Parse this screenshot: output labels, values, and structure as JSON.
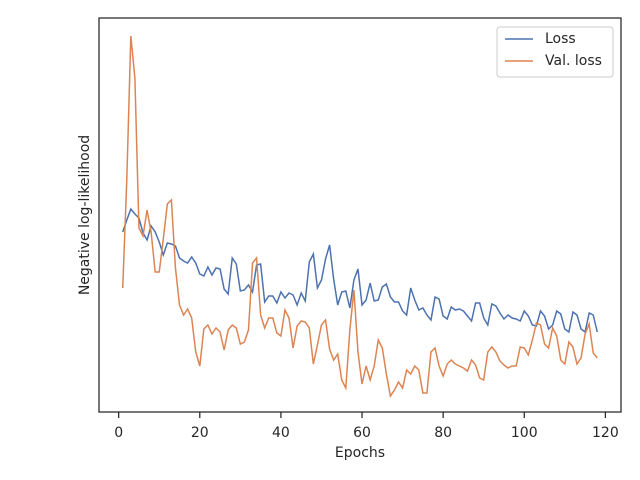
{
  "chart_data": {
    "type": "line",
    "xlabel": "Epochs",
    "ylabel": "Negative log-likelihood",
    "x": [
      1,
      2,
      3,
      4,
      5,
      6,
      7,
      8,
      9,
      10,
      11,
      12,
      13,
      14,
      15,
      16,
      17,
      18,
      19,
      20,
      21,
      22,
      23,
      24,
      25,
      26,
      27,
      28,
      29,
      30,
      31,
      32,
      33,
      34,
      35,
      36,
      37,
      38,
      39,
      40,
      41,
      42,
      43,
      44,
      45,
      46,
      47,
      48,
      49,
      50,
      51,
      52,
      53,
      54,
      55,
      56,
      57,
      58,
      59,
      60,
      61,
      62,
      63,
      64,
      65,
      66,
      67,
      68,
      69,
      70,
      71,
      72,
      73,
      74,
      75,
      76,
      77,
      78,
      79,
      80,
      81,
      82,
      83,
      84,
      85,
      86,
      87,
      88,
      89,
      90,
      91,
      92,
      93,
      94,
      95,
      96,
      97,
      98,
      99,
      100,
      101,
      102,
      103,
      104,
      105,
      106,
      107,
      108,
      109,
      110,
      111,
      112,
      113,
      114,
      115,
      116,
      117,
      118
    ],
    "series": [
      {
        "name": "Loss",
        "color": "#4c72b0",
        "values": [
          180,
          192,
          203,
          198,
          194,
          179,
          172,
          186,
          180,
          170,
          157,
          169,
          168,
          166,
          154,
          151,
          149,
          155,
          149,
          138,
          136,
          145,
          137,
          144,
          143,
          123,
          118,
          154,
          148,
          121,
          122,
          127,
          120,
          147,
          148,
          110,
          116,
          116,
          109,
          120,
          114,
          119,
          117,
          107,
          119,
          111,
          150,
          158,
          124,
          132,
          153,
          167,
          133,
          107,
          120,
          121,
          104,
          132,
          143,
          107,
          112,
          129,
          111,
          112,
          125,
          128,
          115,
          110,
          110,
          101,
          97,
          124,
          112,
          102,
          104,
          97,
          92,
          115,
          113,
          96,
          93,
          105,
          102,
          103,
          101,
          96,
          91,
          109,
          109,
          94,
          87,
          108,
          106,
          99,
          93,
          97,
          94,
          93,
          91,
          101,
          96,
          87,
          86,
          101,
          96,
          83,
          87,
          101,
          98,
          83,
          80,
          100,
          97,
          83,
          80,
          99,
          97,
          80
        ]
      },
      {
        "name": "Val. loss",
        "color": "#dd8452",
        "values": [
          124,
          232,
          376,
          334,
          184,
          176,
          202,
          180,
          140,
          140,
          173,
          208,
          212,
          144,
          107,
          97,
          103,
          94,
          60,
          46,
          83,
          87,
          78,
          84,
          80,
          62,
          82,
          87,
          84,
          68,
          70,
          82,
          149,
          154,
          97,
          84,
          94,
          94,
          79,
          76,
          102,
          94,
          64,
          86,
          91,
          90,
          84,
          48,
          67,
          87,
          92,
          63,
          52,
          58,
          32,
          24,
          82,
          122,
          60,
          28,
          46,
          32,
          46,
          72,
          64,
          38,
          16,
          22,
          30,
          24,
          42,
          38,
          46,
          42,
          19,
          19,
          60,
          64,
          46,
          36,
          48,
          52,
          48,
          46,
          44,
          41,
          52,
          47,
          34,
          32,
          60,
          65,
          60,
          51,
          47,
          44,
          46,
          46,
          65,
          64,
          57,
          72,
          89,
          87,
          68,
          64,
          84,
          76,
          52,
          48,
          70,
          65,
          48,
          54,
          78,
          88,
          59,
          54
        ]
      }
    ],
    "xlim": [
      -4.85,
      123.85
    ],
    "xticks": [
      0,
      20,
      40,
      60,
      80,
      100,
      120
    ],
    "ylim": [
      0,
      394
    ],
    "legend": "upper right"
  }
}
